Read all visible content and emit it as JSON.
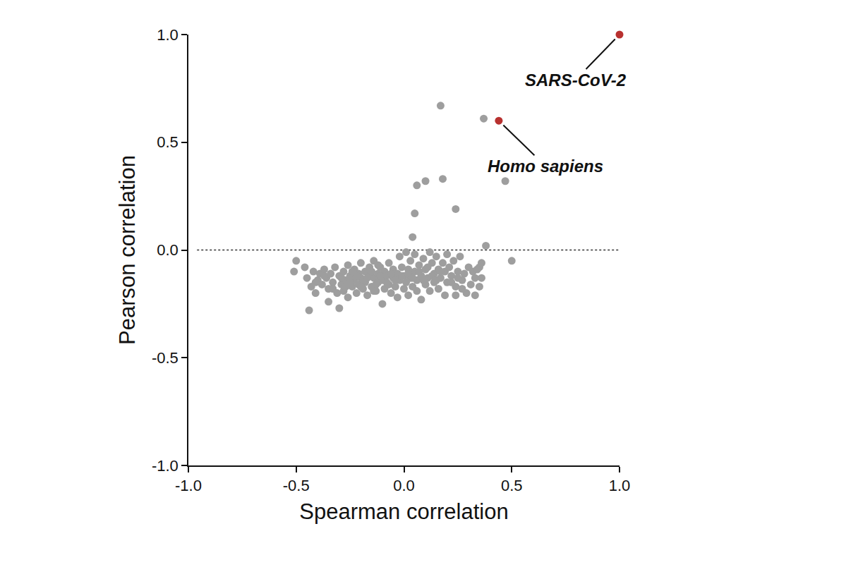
{
  "chart_data": {
    "type": "scatter",
    "xlabel": "Spearman correlation",
    "ylabel": "Pearson correlation",
    "xlim": [
      -1,
      1
    ],
    "ylim": [
      -1,
      1
    ],
    "xticks": [
      {
        "value": -1,
        "label": "-1.0"
      },
      -0.5,
      {
        "value": 0,
        "label": "0.0"
      },
      0.5,
      {
        "value": 1,
        "label": "1.0"
      }
    ],
    "yticks": [
      {
        "value": -1,
        "label": "-1.0"
      },
      -0.5,
      {
        "value": 0,
        "label": "0.0"
      },
      0.5,
      {
        "value": 1,
        "label": "1.0"
      }
    ],
    "grid": false,
    "marker": "circle",
    "reference_line": {
      "y": 0,
      "line_style": "dotted"
    },
    "series": [
      {
        "color": "#9e9e9e",
        "x": [
          -0.5,
          -0.51,
          -0.46,
          -0.45,
          -0.44,
          -0.43,
          -0.42,
          -0.41,
          -0.4,
          -0.39,
          -0.38,
          -0.37,
          -0.36,
          -0.35,
          -0.35,
          -0.34,
          -0.33,
          -0.32,
          -0.31,
          -0.3,
          -0.3,
          -0.29,
          -0.28,
          -0.28,
          -0.27,
          -0.26,
          -0.26,
          -0.25,
          -0.24,
          -0.23,
          -0.23,
          -0.22,
          -0.21,
          -0.21,
          -0.2,
          -0.2,
          -0.19,
          -0.18,
          -0.18,
          -0.17,
          -0.16,
          -0.16,
          -0.15,
          -0.14,
          -0.14,
          -0.13,
          -0.12,
          -0.12,
          -0.11,
          -0.1,
          -0.1,
          -0.09,
          -0.09,
          -0.08,
          -0.07,
          -0.07,
          -0.06,
          -0.05,
          -0.05,
          -0.04,
          -0.03,
          -0.03,
          -0.02,
          -0.02,
          -0.01,
          0.0,
          0.0,
          0.01,
          0.01,
          0.02,
          0.02,
          0.03,
          0.03,
          0.04,
          0.05,
          0.05,
          0.06,
          0.06,
          0.07,
          0.08,
          0.08,
          0.09,
          0.1,
          0.1,
          0.11,
          0.12,
          0.12,
          0.13,
          0.14,
          0.14,
          0.15,
          0.16,
          0.16,
          0.17,
          0.18,
          0.19,
          0.19,
          0.2,
          0.2,
          0.21,
          0.22,
          0.23,
          0.24,
          0.24,
          0.25,
          0.26,
          0.27,
          0.28,
          0.29,
          0.3,
          0.31,
          0.32,
          0.33,
          0.33,
          0.34,
          0.35,
          0.35,
          0.36,
          0.36,
          0.27,
          -0.25,
          -0.22,
          -0.19,
          -0.15,
          -0.13,
          -0.11,
          -0.08,
          -0.06,
          -0.04,
          -0.01,
          0.02,
          0.04,
          0.07,
          0.09,
          0.11,
          0.13,
          0.15,
          0.17,
          0.22,
          0.25,
          -0.41,
          -0.37,
          -0.33,
          -0.29,
          -0.27,
          -0.24,
          -0.2,
          -0.17,
          -0.14,
          -0.12,
          0.17,
          0.37,
          0.47,
          0.06,
          0.1,
          0.18,
          0.05,
          0.24,
          0.04,
          0.38,
          0.5
        ],
        "values": [
          -0.05,
          -0.1,
          -0.08,
          -0.13,
          -0.28,
          -0.17,
          -0.1,
          -0.2,
          -0.14,
          -0.11,
          -0.16,
          -0.09,
          -0.13,
          -0.24,
          -0.18,
          -0.11,
          -0.15,
          -0.08,
          -0.2,
          -0.27,
          -0.12,
          -0.16,
          -0.1,
          -0.19,
          -0.14,
          -0.07,
          -0.22,
          -0.12,
          -0.17,
          -0.09,
          -0.14,
          -0.2,
          -0.11,
          -0.16,
          -0.06,
          -0.13,
          -0.18,
          -0.1,
          -0.15,
          -0.21,
          -0.12,
          -0.08,
          -0.17,
          -0.13,
          -0.05,
          -0.19,
          -0.11,
          -0.15,
          -0.08,
          -0.25,
          -0.14,
          -0.18,
          -0.1,
          -0.12,
          -0.16,
          -0.06,
          -0.2,
          -0.13,
          -0.09,
          -0.17,
          -0.11,
          -0.22,
          -0.14,
          -0.03,
          -0.08,
          -0.18,
          -0.12,
          -0.01,
          -0.15,
          -0.09,
          -0.21,
          -0.13,
          -0.05,
          -0.17,
          -0.1,
          -0.02,
          -0.14,
          -0.19,
          -0.07,
          -0.23,
          -0.12,
          -0.04,
          -0.16,
          -0.09,
          -0.13,
          -0.01,
          -0.19,
          -0.06,
          -0.11,
          -0.15,
          -0.03,
          -0.09,
          -0.18,
          -0.13,
          -0.06,
          -0.21,
          -0.1,
          -0.02,
          -0.15,
          -0.08,
          -0.12,
          -0.05,
          -0.21,
          -0.17,
          -0.1,
          -0.03,
          -0.14,
          -0.11,
          -0.2,
          -0.08,
          -0.16,
          -0.1,
          -0.21,
          -0.13,
          -0.09,
          -0.08,
          -0.17,
          -0.13,
          -0.06,
          -0.18,
          -0.15,
          -0.12,
          -0.14,
          -0.1,
          -0.16,
          -0.12,
          -0.15,
          -0.11,
          -0.14,
          -0.12,
          -0.11,
          -0.13,
          -0.1,
          -0.14,
          -0.08,
          -0.12,
          -0.14,
          -0.1,
          -0.15,
          -0.13,
          -0.15,
          -0.12,
          -0.18,
          -0.13,
          -0.17,
          -0.1,
          -0.17,
          -0.13,
          -0.19,
          -0.07,
          0.67,
          0.61,
          0.32,
          0.3,
          0.32,
          0.33,
          0.17,
          0.19,
          0.06,
          0.02,
          -0.05
        ]
      },
      {
        "name": "SARS-CoV-2",
        "color": "#b8312f",
        "x": [
          1.0
        ],
        "values": [
          1.0
        ]
      },
      {
        "name": "Homo sapiens",
        "color": "#b8312f",
        "x": [
          0.44
        ],
        "values": [
          0.6
        ]
      }
    ]
  }
}
